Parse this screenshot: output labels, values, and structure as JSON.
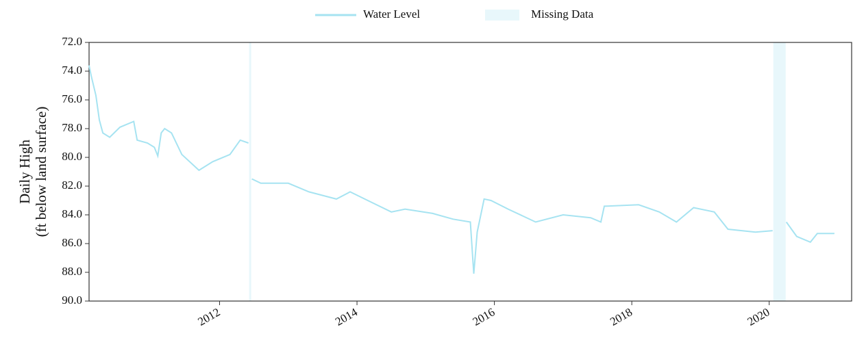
{
  "chart_data": {
    "type": "line",
    "y_label": [
      "Daily High",
      "(ft below land surface)"
    ],
    "xlim": [
      2010.1,
      2021.2
    ],
    "xticks": [
      2012,
      2014,
      2016,
      2018,
      2020
    ],
    "ylim": [
      72,
      90
    ],
    "y_inverted": true,
    "yticks": [
      {
        "value": 72,
        "label": "72.0"
      },
      {
        "value": 74,
        "label": "74.0"
      },
      {
        "value": 76,
        "label": "76.0"
      },
      {
        "value": 78,
        "label": "78.0"
      },
      {
        "value": 80,
        "label": "80.0"
      },
      {
        "value": 82,
        "label": "82.0"
      },
      {
        "value": 84,
        "label": "84.0"
      },
      {
        "value": 86,
        "label": "86.0"
      },
      {
        "value": 88,
        "label": "88.0"
      },
      {
        "value": 90,
        "label": "90.0"
      }
    ],
    "x": [
      2010.1,
      2010.13,
      2010.2,
      2010.25,
      2010.3,
      2010.4,
      2010.55,
      2010.75,
      2010.8,
      2010.95,
      2011.05,
      2011.1,
      2011.15,
      2011.2,
      2011.3,
      2011.45,
      2011.7,
      2011.9,
      2012.15,
      2012.3,
      2012.42,
      null,
      2012.47,
      2012.6,
      2013.0,
      2013.3,
      2013.7,
      2013.9,
      2014.2,
      2014.5,
      2014.7,
      2015.1,
      2015.4,
      2015.65,
      2015.7,
      2015.75,
      2015.85,
      2015.95,
      2016.2,
      2016.6,
      2017.0,
      2017.4,
      2017.55,
      2017.6,
      2018.1,
      2018.4,
      2018.65,
      2018.9,
      2019.2,
      2019.4,
      2019.8,
      2020.05,
      null,
      2020.25,
      2020.4,
      2020.6,
      2020.7,
      2020.95
    ],
    "series": [
      {
        "name": "Water Level",
        "color": "#a6e3f1",
        "values": [
          73.6,
          74.3,
          75.7,
          77.4,
          78.3,
          78.6,
          77.9,
          77.5,
          78.8,
          79.0,
          79.3,
          79.9,
          78.3,
          78.0,
          78.3,
          79.8,
          80.9,
          80.3,
          79.8,
          78.8,
          79.0,
          null,
          81.5,
          81.8,
          81.8,
          82.4,
          82.9,
          82.4,
          83.1,
          83.8,
          83.6,
          83.9,
          84.3,
          84.5,
          88.1,
          85.2,
          82.9,
          83.0,
          83.6,
          84.5,
          84.0,
          84.2,
          84.5,
          83.4,
          83.3,
          83.8,
          84.5,
          83.5,
          83.8,
          85.0,
          85.2,
          85.1,
          null,
          84.5,
          85.5,
          85.9,
          85.3,
          85.3
        ]
      }
    ],
    "missing": {
      "name": "Missing Data",
      "color": "#e8f7fb",
      "ranges": [
        [
          2012.43,
          2012.46
        ],
        [
          2020.06,
          2020.24
        ]
      ]
    }
  }
}
